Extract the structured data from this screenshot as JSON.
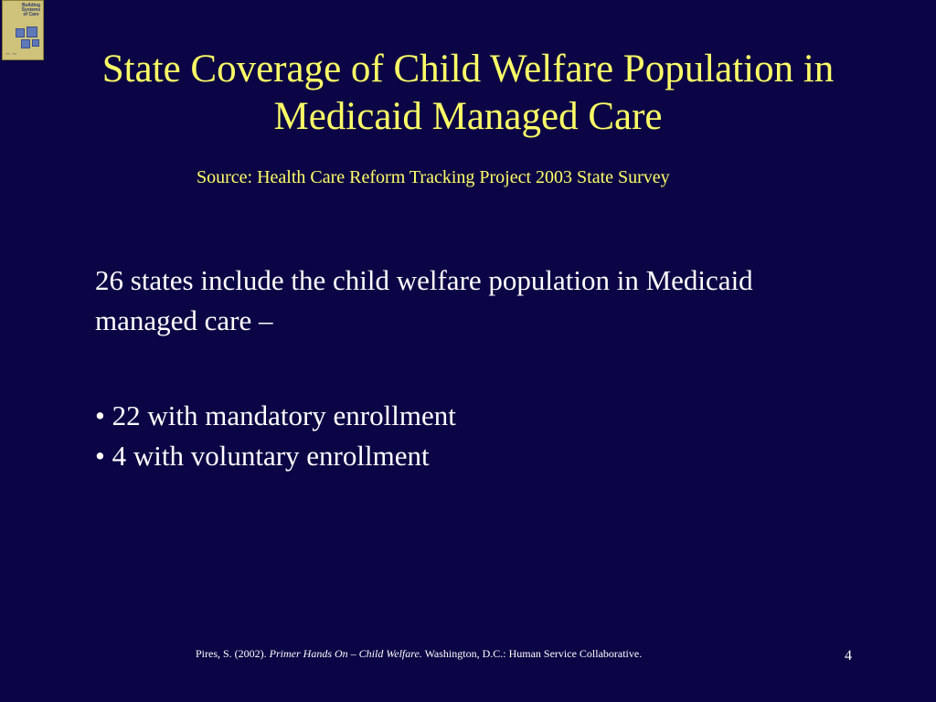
{
  "slide": {
    "title": "State Coverage of Child Welfare Population in Medicaid Managed Care",
    "source": "Source:  Health Care Reform Tracking Project 2003 State Survey",
    "intro": "26 states include the child welfare population in Medicaid managed care –",
    "bullets": [
      "• 22 with mandatory enrollment",
      "• 4 with voluntary enrollment"
    ],
    "citation": {
      "author": "Pires, S. (2002). ",
      "title": "Primer Hands On – Child Welfare.",
      "publisher": " Washington, D.C.: Human Service Collaborative."
    },
    "page_number": "4"
  },
  "logo": {
    "text": "Building Systems of Care"
  },
  "colors": {
    "background": "#0b0545",
    "title": "#ffff66",
    "body": "#ffffff"
  }
}
